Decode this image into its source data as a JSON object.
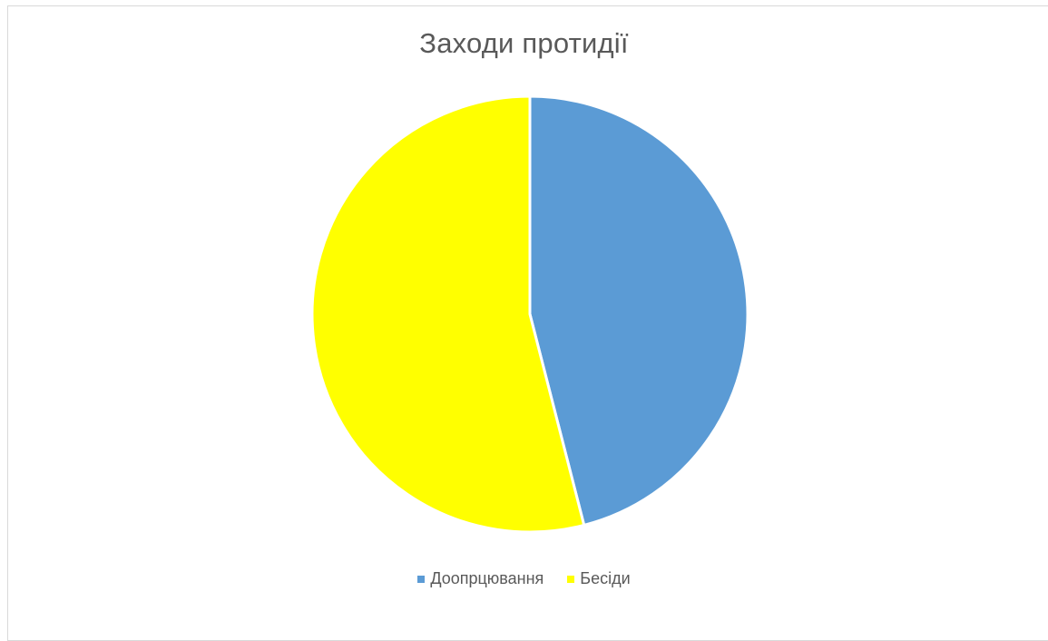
{
  "chart_data": {
    "type": "pie",
    "title": "Заходи протидії",
    "categories": [
      "Доопрцювання",
      "Бесіди"
    ],
    "values": [
      46,
      54
    ],
    "colors": [
      "#5b9bd5",
      "#ffff00"
    ],
    "legend_position": "bottom",
    "start_angle_deg": 0,
    "direction": "clockwise"
  }
}
